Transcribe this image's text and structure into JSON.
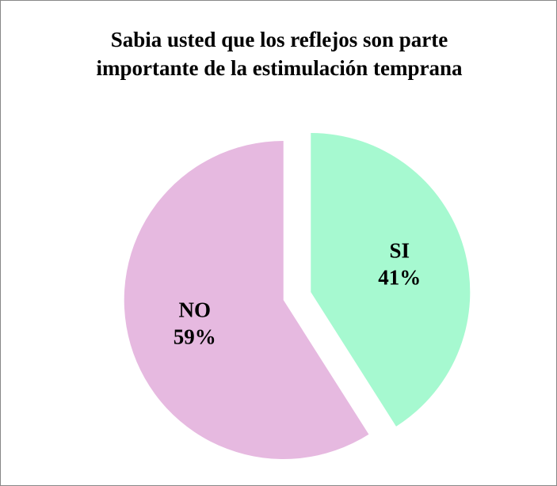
{
  "chart_data": {
    "type": "pie",
    "title": "Sabia usted que los reflejos son parte importante de la estimulación temprana",
    "categories": [
      "SI",
      "NO"
    ],
    "values": [
      41,
      59
    ],
    "value_labels": [
      "41%",
      "59%"
    ],
    "colors": [
      "#a6f9d0",
      "#e6b9e0"
    ]
  }
}
